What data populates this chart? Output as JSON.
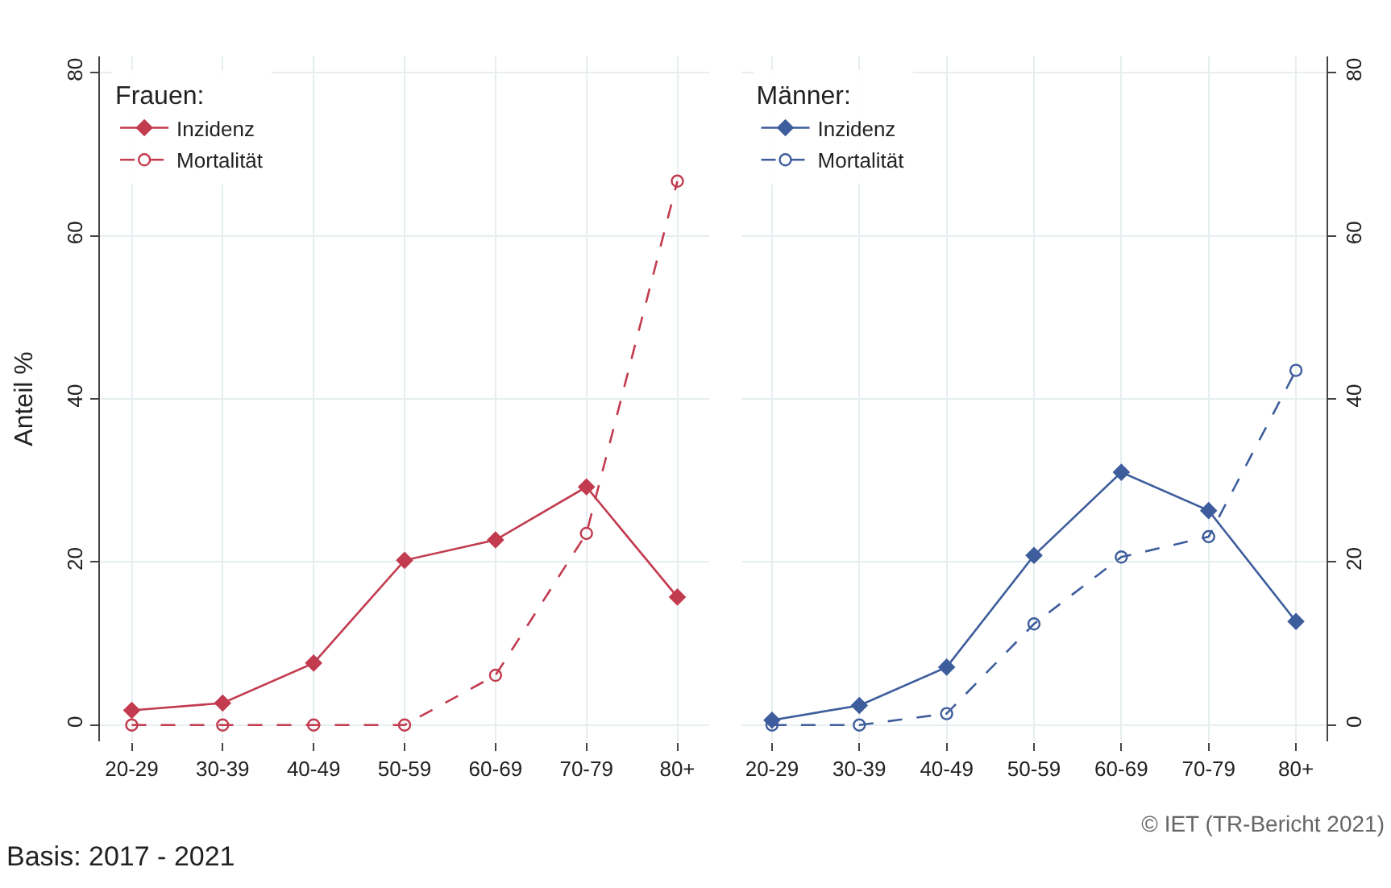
{
  "chart_data": [
    {
      "type": "line",
      "legend_title": "Frauen:",
      "ylabel": "Anteil %",
      "categories": [
        "20-29",
        "30-39",
        "40-49",
        "50-59",
        "60-69",
        "70-79",
        "80+"
      ],
      "series": [
        {
          "name": "Inzidenz",
          "color": "#c23b4f",
          "marker": "diamond",
          "line_style": "solid",
          "values": [
            1.8,
            2.7,
            7.6,
            20.2,
            22.7,
            29.2,
            15.7
          ]
        },
        {
          "name": "Mortalität",
          "color": "#c23b4f",
          "marker": "circle",
          "line_style": "dashed",
          "values": [
            0,
            0,
            0,
            0,
            6.1,
            23.5,
            66.7
          ]
        }
      ],
      "ylim": [
        -2,
        82
      ],
      "yticks": [
        0,
        20,
        40,
        60,
        80
      ],
      "grid": true,
      "legend": "top left",
      "annotations": [
        "Basis: 2017 - 2021"
      ]
    },
    {
      "type": "line",
      "legend_title": "Männer:",
      "categories": [
        "20-29",
        "30-39",
        "40-49",
        "50-59",
        "60-69",
        "70-79",
        "80+"
      ],
      "series": [
        {
          "name": "Inzidenz",
          "color": "#3e5d9c",
          "marker": "diamond",
          "line_style": "solid",
          "values": [
            0.6,
            2.4,
            7.1,
            20.8,
            31,
            26.3,
            12.7
          ]
        },
        {
          "name": "Mortalität",
          "color": "#3e5d9c",
          "marker": "circle",
          "line_style": "dashed",
          "values": [
            0,
            0,
            1.4,
            12.4,
            20.6,
            23.1,
            43.5
          ]
        }
      ],
      "ylim": [
        -2,
        82
      ],
      "yticks": [
        0,
        20,
        40,
        60,
        80
      ],
      "grid": true,
      "legend": "top left",
      "annotations": [
        "© IET (TR-Bericht 2021)"
      ]
    }
  ]
}
